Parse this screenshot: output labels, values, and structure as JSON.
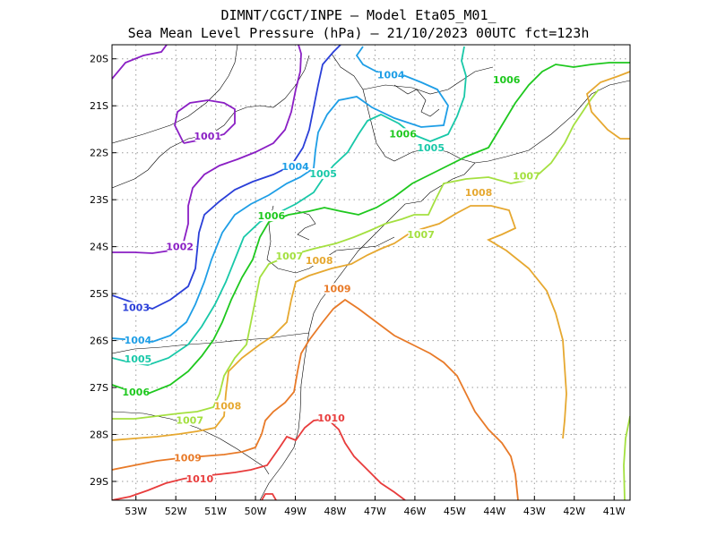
{
  "title": {
    "line1": "DIMNT/CGCT/INPE –  Model Eta05_M01_",
    "line2": "Sea Mean Level Pressure (hPa) – 21/10/2023 00UTC fct=123h"
  },
  "axes": {
    "x_ticks": [
      "53W",
      "52W",
      "51W",
      "50W",
      "49W",
      "48W",
      "47W",
      "46W",
      "45W",
      "44W",
      "43W",
      "42W",
      "41W"
    ],
    "y_ticks": [
      "20S",
      "21S",
      "22S",
      "23S",
      "24S",
      "25S",
      "26S",
      "27S",
      "28S",
      "29S"
    ],
    "lon_range": [
      -53.6,
      -40.6
    ],
    "lat_range": [
      -29.4,
      -19.7
    ],
    "grid": true
  },
  "colors": {
    "1001": "#8a1fc4",
    "1002": "#8a1fc4",
    "1003": "#2a3fd8",
    "1004": "#1e9ee6",
    "1005": "#18c8a8",
    "1006": "#1ec81e",
    "1007": "#a4e040",
    "1008": "#e6a830",
    "1009": "#e87a28",
    "1010": "#e83c3c"
  },
  "contour_labels": [
    {
      "text": "1001",
      "level": "1001",
      "lon": -51.2,
      "lat": -21.7
    },
    {
      "text": "1002",
      "level": "1002",
      "lon": -51.9,
      "lat": -24.05
    },
    {
      "text": "1003",
      "level": "1003",
      "lon": -53.0,
      "lat": -25.35
    },
    {
      "text": "1004",
      "level": "1004",
      "lon": -52.95,
      "lat": -26.05
    },
    {
      "text": "1004",
      "level": "1004",
      "lon": -49.0,
      "lat": -22.35
    },
    {
      "text": "1004",
      "level": "1004",
      "lon": -46.6,
      "lat": -20.4
    },
    {
      "text": "1005",
      "level": "1005",
      "lon": -52.95,
      "lat": -26.45
    },
    {
      "text": "1005",
      "level": "1005",
      "lon": -48.3,
      "lat": -22.5
    },
    {
      "text": "1005",
      "level": "1005",
      "lon": -45.6,
      "lat": -21.95
    },
    {
      "text": "1006",
      "level": "1006",
      "lon": -53.0,
      "lat": -27.15
    },
    {
      "text": "1006",
      "level": "1006",
      "lon": -49.6,
      "lat": -23.4
    },
    {
      "text": "1006",
      "level": "1006",
      "lon": -46.3,
      "lat": -21.65
    },
    {
      "text": "1006",
      "level": "1006",
      "lon": -43.7,
      "lat": -20.5
    },
    {
      "text": "1007",
      "level": "1007",
      "lon": -51.65,
      "lat": -27.75
    },
    {
      "text": "1007",
      "level": "1007",
      "lon": -49.15,
      "lat": -24.25
    },
    {
      "text": "1007",
      "level": "1007",
      "lon": -45.85,
      "lat": -23.8
    },
    {
      "text": "1007",
      "level": "1007",
      "lon": -43.2,
      "lat": -22.55
    },
    {
      "text": "1008",
      "level": "1008",
      "lon": -50.7,
      "lat": -27.45
    },
    {
      "text": "1008",
      "level": "1008",
      "lon": -48.4,
      "lat": -24.35
    },
    {
      "text": "1008",
      "level": "1008",
      "lon": -44.4,
      "lat": -22.9
    },
    {
      "text": "1009",
      "level": "1009",
      "lon": -51.7,
      "lat": -28.55
    },
    {
      "text": "1009",
      "level": "1009",
      "lon": -47.95,
      "lat": -24.95
    },
    {
      "text": "1010",
      "level": "1010",
      "lon": -51.4,
      "lat": -29.0
    },
    {
      "text": "1010",
      "level": "1010",
      "lon": -48.1,
      "lat": -27.7
    }
  ]
}
